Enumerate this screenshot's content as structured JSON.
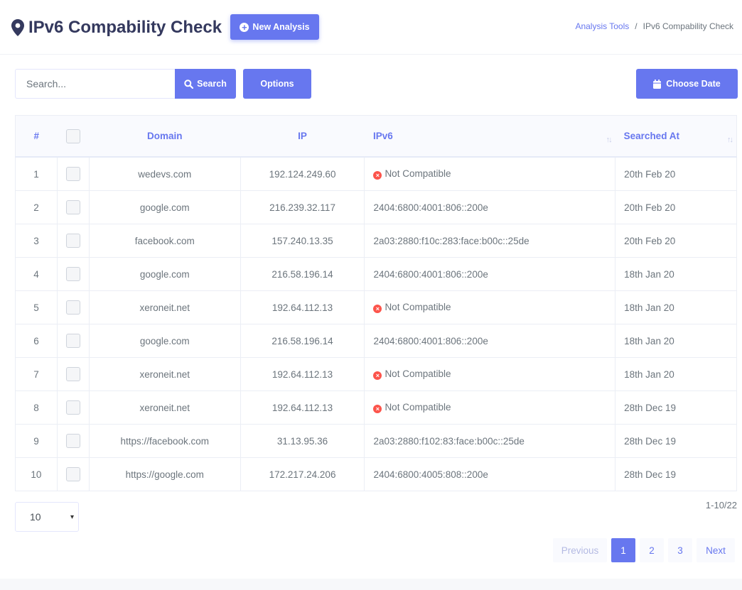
{
  "header": {
    "title": "IPv6 Compability Check",
    "new_button": "New Analysis",
    "breadcrumb": {
      "parent": "Analysis Tools",
      "separator": "/",
      "current": "IPv6 Compability Check"
    }
  },
  "toolbar": {
    "search_placeholder": "Search...",
    "search_button": "Search",
    "options_button": "Options",
    "date_button": "Choose Date"
  },
  "table": {
    "columns": {
      "num": "#",
      "domain": "Domain",
      "ip": "IP",
      "ipv6": "IPv6",
      "searched": "Searched At"
    },
    "sort_glyph": "↑↓",
    "not_compatible_icon": "×",
    "rows": [
      {
        "num": "1",
        "domain": "wedevs.com",
        "ip": "192.124.249.60",
        "ipv6": "Not Compatible",
        "compatible": false,
        "date": "20th Feb 20"
      },
      {
        "num": "2",
        "domain": "google.com",
        "ip": "216.239.32.117",
        "ipv6": "2404:6800:4001:806::200e",
        "compatible": true,
        "date": "20th Feb 20"
      },
      {
        "num": "3",
        "domain": "facebook.com",
        "ip": "157.240.13.35",
        "ipv6": "2a03:2880:f10c:283:face:b00c::25de",
        "compatible": true,
        "date": "20th Feb 20"
      },
      {
        "num": "4",
        "domain": "google.com",
        "ip": "216.58.196.14",
        "ipv6": "2404:6800:4001:806::200e",
        "compatible": true,
        "date": "18th Jan 20"
      },
      {
        "num": "5",
        "domain": "xeroneit.net",
        "ip": "192.64.112.13",
        "ipv6": "Not Compatible",
        "compatible": false,
        "date": "18th Jan 20"
      },
      {
        "num": "6",
        "domain": "google.com",
        "ip": "216.58.196.14",
        "ipv6": "2404:6800:4001:806::200e",
        "compatible": true,
        "date": "18th Jan 20"
      },
      {
        "num": "7",
        "domain": "xeroneit.net",
        "ip": "192.64.112.13",
        "ipv6": "Not Compatible",
        "compatible": false,
        "date": "18th Jan 20"
      },
      {
        "num": "8",
        "domain": "xeroneit.net",
        "ip": "192.64.112.13",
        "ipv6": "Not Compatible",
        "compatible": false,
        "date": "28th Dec 19"
      },
      {
        "num": "9",
        "domain": "https://facebook.com",
        "ip": "31.13.95.36",
        "ipv6": "2a03:2880:f102:83:face:b00c::25de",
        "compatible": true,
        "date": "28th Dec 19"
      },
      {
        "num": "10",
        "domain": "https://google.com",
        "ip": "172.217.24.206",
        "ipv6": "2404:6800:4005:808::200e",
        "compatible": true,
        "date": "28th Dec 19"
      }
    ]
  },
  "pagination": {
    "per_page": "10",
    "per_page_caret": "▾",
    "range": "1-10/22",
    "previous": "Previous",
    "pages": [
      "1",
      "2",
      "3"
    ],
    "active_page": "1",
    "next": "Next"
  },
  "colors": {
    "primary": "#6777ef",
    "danger": "#fc544b",
    "title": "#34395e"
  },
  "icons": {
    "title": "map-marker-icon",
    "new": "plus-circle-icon",
    "search": "search-icon",
    "date": "calendar-icon"
  }
}
